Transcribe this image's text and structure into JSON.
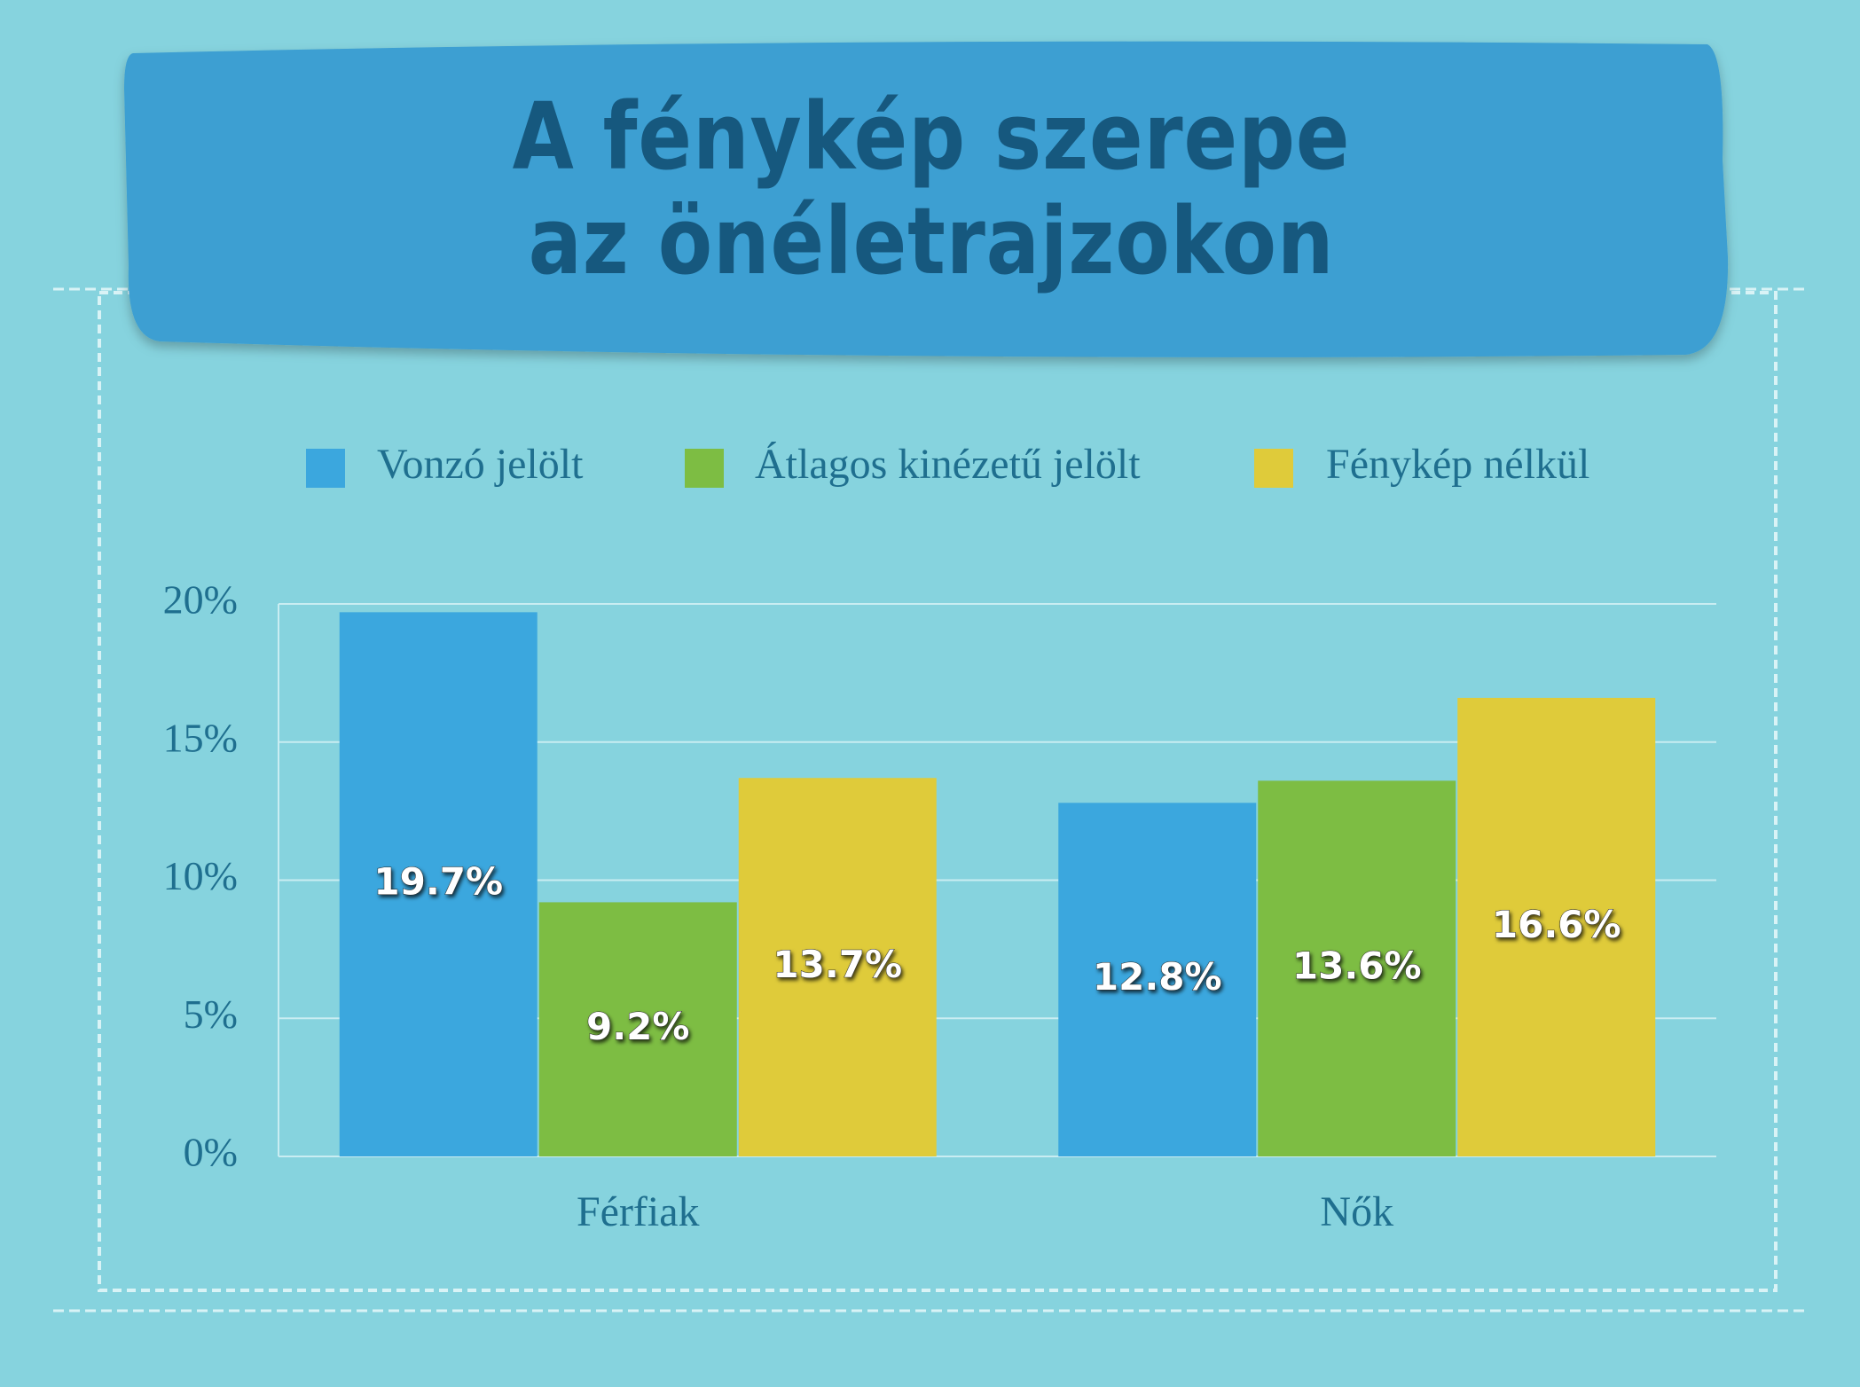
{
  "chart_data": {
    "type": "bar",
    "title": "A fénykép szerepe az önéletrajzokon",
    "categories": [
      "Férfiak",
      "Nők"
    ],
    "series": [
      {
        "name": "Vonzó jelölt",
        "color": "#3ba7de",
        "values": [
          19.7,
          12.8
        ],
        "value_labels": [
          "19.7%",
          "12.8%"
        ]
      },
      {
        "name": "Átlagos kinézetű jelölt",
        "color": "#7dbd43",
        "values": [
          9.2,
          13.6
        ],
        "value_labels": [
          "9.2%",
          "13.6%"
        ]
      },
      {
        "name": "Fénykép nélkül",
        "color": "#dfcb3a",
        "values": [
          13.7,
          16.6
        ],
        "value_labels": [
          "13.7%",
          "16.6%"
        ]
      }
    ],
    "ylim": [
      0,
      20
    ],
    "yticks": [
      {
        "value": 0,
        "label": "0%"
      },
      {
        "value": 5,
        "label": "5%"
      },
      {
        "value": 10,
        "label": "10%"
      },
      {
        "value": 15,
        "label": "15%"
      },
      {
        "value": 20,
        "label": "20%"
      }
    ],
    "grid": true,
    "legend": "top"
  }
}
